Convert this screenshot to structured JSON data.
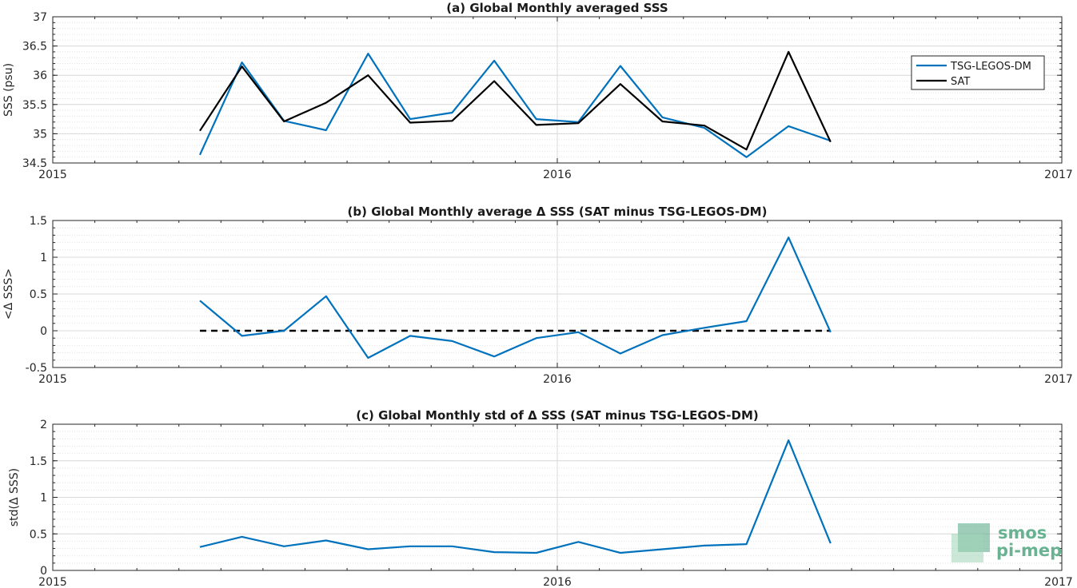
{
  "chart_data": [
    {
      "type": "line",
      "title": "(a) Global Monthly averaged SSS",
      "xlabel": "",
      "ylabel": "SSS (psu)",
      "xlim": [
        "2015",
        "2017"
      ],
      "ylim": [
        34.5,
        37
      ],
      "x_ticks": [
        "2015",
        "2016",
        "2017"
      ],
      "y_ticks": [
        "34.5",
        "35",
        "35.5",
        "36",
        "36.5",
        "37"
      ],
      "grid": true,
      "legend_position": "right",
      "x": [
        "2015-04",
        "2015-05",
        "2015-06",
        "2015-07",
        "2015-08",
        "2015-09",
        "2015-10",
        "2015-11",
        "2015-12",
        "2016-01",
        "2016-02",
        "2016-03",
        "2016-04",
        "2016-05",
        "2016-06",
        "2016-07"
      ],
      "series": [
        {
          "name": "TSG-LEGOS-DM",
          "color": "#0072bd",
          "values": [
            34.64,
            36.22,
            35.22,
            35.06,
            36.37,
            35.25,
            35.36,
            36.25,
            35.25,
            35.2,
            36.16,
            35.28,
            35.1,
            34.6,
            35.13,
            34.88
          ]
        },
        {
          "name": "SAT",
          "color": "#000000",
          "values": [
            35.05,
            36.15,
            35.21,
            35.53,
            36.0,
            35.19,
            35.22,
            35.9,
            35.15,
            35.18,
            35.85,
            35.21,
            35.14,
            34.73,
            36.4,
            34.86
          ]
        }
      ]
    },
    {
      "type": "line",
      "title": "(b) Global Monthly average Δ SSS (SAT minus TSG-LEGOS-DM)",
      "xlabel": "",
      "ylabel": "<Δ SSS>",
      "xlim": [
        "2015",
        "2017"
      ],
      "ylim": [
        -0.5,
        1.5
      ],
      "x_ticks": [
        "2015",
        "2016",
        "2017"
      ],
      "y_ticks": [
        "-0.5",
        "0",
        "0.5",
        "1",
        "1.5"
      ],
      "grid": true,
      "x": [
        "2015-04",
        "2015-05",
        "2015-06",
        "2015-07",
        "2015-08",
        "2015-09",
        "2015-10",
        "2015-11",
        "2015-12",
        "2016-01",
        "2016-02",
        "2016-03",
        "2016-04",
        "2016-05",
        "2016-06",
        "2016-07"
      ],
      "series": [
        {
          "name": "",
          "color": "#0072bd",
          "values": [
            0.41,
            -0.07,
            0.0,
            0.47,
            -0.37,
            -0.07,
            -0.14,
            -0.35,
            -0.1,
            -0.02,
            -0.31,
            -0.06,
            0.04,
            0.13,
            1.27,
            -0.02
          ]
        }
      ],
      "reference_line": {
        "y": 0,
        "style": "dashed",
        "color": "#000000",
        "x_range": [
          "2015-04",
          "2016-07"
        ]
      }
    },
    {
      "type": "line",
      "title": "(c) Global Monthly std of Δ SSS (SAT minus TSG-LEGOS-DM)",
      "xlabel": "",
      "ylabel": "std(Δ SSS)",
      "xlim": [
        "2015",
        "2017"
      ],
      "ylim": [
        0,
        2
      ],
      "x_ticks": [
        "2015",
        "2016",
        "2017"
      ],
      "y_ticks": [
        "0",
        "0.5",
        "1",
        "1.5",
        "2"
      ],
      "grid": true,
      "x": [
        "2015-04",
        "2015-05",
        "2015-06",
        "2015-07",
        "2015-08",
        "2015-09",
        "2015-10",
        "2015-11",
        "2015-12",
        "2016-01",
        "2016-02",
        "2016-03",
        "2016-04",
        "2016-05",
        "2016-06",
        "2016-07"
      ],
      "series": [
        {
          "name": "",
          "color": "#0072bd",
          "values": [
            0.32,
            0.46,
            0.33,
            0.41,
            0.29,
            0.33,
            0.33,
            0.25,
            0.24,
            0.39,
            0.24,
            0.29,
            0.34,
            0.36,
            1.78,
            0.37
          ]
        }
      ]
    }
  ],
  "logo": {
    "line1": "smos",
    "line2": "pi-mep",
    "color": "#4fa57f"
  }
}
